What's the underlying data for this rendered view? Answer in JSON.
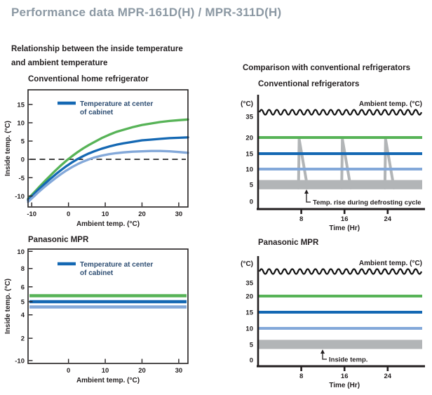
{
  "page_title": "Performance data MPR-161D(H) / MPR-311D(H)",
  "sections": {
    "left": {
      "heading_line1": "Relationship between the inside temperature",
      "heading_line2": "and ambient temperature"
    },
    "right": {
      "heading": "Comparison with conventional refrigerators"
    }
  },
  "colors": {
    "title_gray": "#8b98a3",
    "text_black": "#231f20",
    "green": "#57b357",
    "blue": "#1468b3",
    "light_blue": "#83a8d9",
    "gray_band": "#b2b5b7",
    "legend_text": "#2d4d72"
  },
  "chart_data": [
    {
      "id": "conventional-home-refrigerator",
      "type": "line",
      "title": "Conventional home refrigerator",
      "xlabel": "Ambient temp.  (°C)",
      "ylabel": "Inside temp.  (°C)",
      "xlim": [
        -11,
        32.5
      ],
      "ylim": [
        -13,
        19
      ],
      "xticks": [
        -10,
        0,
        10,
        20,
        30
      ],
      "yticks": [
        15,
        10,
        5,
        0,
        -5,
        -10
      ],
      "zero_reference_line": true,
      "legend_label_line1": "Temperature at center",
      "legend_label_line2": "of cabinet",
      "x": [
        -11,
        -9.5,
        -8,
        -6.5,
        -5,
        -3.5,
        -2,
        -0.5,
        1,
        2.5,
        4,
        5.5,
        7,
        9,
        11,
        13,
        15,
        17.5,
        20,
        22.5,
        25,
        27.5,
        30,
        32.5
      ],
      "series": [
        {
          "name": "warmest-zone",
          "color_key": "green",
          "y": [
            -10.8,
            -9.2,
            -7.6,
            -6.0,
            -4.5,
            -3.0,
            -1.6,
            -0.3,
            0.9,
            2.0,
            3.0,
            3.9,
            4.7,
            5.8,
            6.7,
            7.5,
            8.1,
            8.8,
            9.4,
            9.8,
            10.2,
            10.5,
            10.7,
            10.9
          ]
        },
        {
          "name": "temperature-at-center-of-cabinet",
          "color_key": "blue",
          "y": [
            -11.1,
            -9.6,
            -8.1,
            -6.7,
            -5.4,
            -4.1,
            -2.9,
            -1.8,
            -0.8,
            0.1,
            0.9,
            1.6,
            2.2,
            2.9,
            3.5,
            4.0,
            4.4,
            4.8,
            5.2,
            5.4,
            5.6,
            5.8,
            5.9,
            6.0
          ]
        },
        {
          "name": "coldest-zone",
          "color_key": "light_blue",
          "y": [
            -11.6,
            -10.2,
            -8.8,
            -7.5,
            -6.3,
            -5.1,
            -4.0,
            -3.0,
            -2.1,
            -1.3,
            -0.6,
            0.0,
            0.5,
            1.0,
            1.4,
            1.7,
            1.9,
            2.1,
            2.2,
            2.3,
            2.3,
            2.2,
            2.0,
            1.8
          ]
        }
      ]
    },
    {
      "id": "panasonic-mpr-vs-ambient",
      "type": "line",
      "title": "Panasonic MPR",
      "xlabel": "Ambient temp.  (°C)",
      "ylabel": "Inside temp.  (°C)",
      "xlim": [
        -11,
        32.5
      ],
      "xticks": [
        0,
        10,
        20,
        30
      ],
      "yticks": [
        10,
        8,
        6,
        5,
        4,
        2,
        -10
      ],
      "legend_label_line1": "Temperature at center",
      "legend_label_line2": "of cabinet",
      "series": [
        {
          "name": "warmest-zone",
          "color_key": "green",
          "constant_y": 5.4
        },
        {
          "name": "temperature-at-center-of-cabinet",
          "color_key": "blue",
          "constant_y": 5.0
        },
        {
          "name": "coldest-zone",
          "color_key": "light_blue",
          "constant_y": 4.6
        }
      ]
    },
    {
      "id": "conventional-refrigerators-over-time",
      "type": "line",
      "title": "Conventional refrigerators",
      "xlabel": "Time (Hr)",
      "y_unit_label": "(°C)",
      "xticks": [
        8,
        16,
        24
      ],
      "yticks": [
        35,
        20,
        15,
        10,
        5,
        0
      ],
      "ambient_line_label": "Ambient temp. (°C)",
      "ambient_value": 38,
      "annotation": "Temp. rise during defrosting cycle",
      "series": [
        {
          "name": "ambient-temp",
          "style": "wavy-black",
          "constant_y": 38
        },
        {
          "name": "setpoint-20",
          "color_key": "green",
          "constant_y": 20
        },
        {
          "name": "setpoint-15",
          "color_key": "blue",
          "constant_y": 15
        },
        {
          "name": "setpoint-10",
          "color_key": "light_blue",
          "constant_y": 10
        },
        {
          "name": "inside-temp-band",
          "color_key": "gray_band",
          "band_y": [
            4,
            6
          ],
          "defrost_spike_hours": [
            8,
            16,
            24
          ],
          "spike_peak_y": 19.5
        }
      ]
    },
    {
      "id": "panasonic-mpr-over-time",
      "type": "line",
      "title": "Panasonic MPR",
      "xlabel": "Time (Hr)",
      "y_unit_label": "(°C)",
      "xticks": [
        8,
        16,
        24
      ],
      "yticks": [
        35,
        20,
        15,
        10,
        5,
        0
      ],
      "ambient_line_label": "Ambient temp. (°C)",
      "ambient_value": 38,
      "annotation": "Inside temp.",
      "series": [
        {
          "name": "ambient-temp",
          "style": "wavy-black",
          "constant_y": 38
        },
        {
          "name": "setpoint-20",
          "color_key": "green",
          "constant_y": 20
        },
        {
          "name": "setpoint-15",
          "color_key": "blue",
          "constant_y": 15
        },
        {
          "name": "setpoint-10",
          "color_key": "light_blue",
          "constant_y": 10
        },
        {
          "name": "inside-temp-band",
          "color_key": "gray_band",
          "band_y": [
            4,
            6
          ]
        }
      ]
    }
  ]
}
